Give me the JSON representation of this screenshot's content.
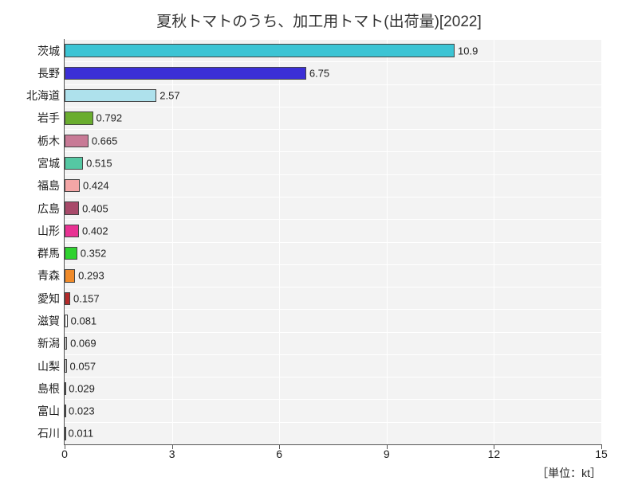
{
  "chart": {
    "type": "bar-horizontal",
    "title": "夏秋トマトのうち、加工用トマト(出荷量)[2022]",
    "unit_label": "［単位：kt］",
    "background_outer": "#ffffff",
    "background_plot": "#f3f3f3",
    "grid_color": "#ffffff",
    "axis_color": "#555555",
    "title_fontsize": 19,
    "label_fontsize": 14,
    "value_fontsize": 13,
    "xlim": [
      0,
      15
    ],
    "xticks": [
      0,
      3,
      6,
      9,
      12,
      15
    ],
    "bar_fill_ratio": 0.6,
    "categories": [
      "茨城",
      "長野",
      "北海道",
      "岩手",
      "栃木",
      "宮城",
      "福島",
      "広島",
      "山形",
      "群馬",
      "青森",
      "愛知",
      "滋賀",
      "新潟",
      "山梨",
      "島根",
      "富山",
      "石川"
    ],
    "values": [
      10.9,
      6.75,
      2.57,
      0.792,
      0.665,
      0.515,
      0.424,
      0.405,
      0.402,
      0.352,
      0.293,
      0.157,
      0.081,
      0.069,
      0.057,
      0.029,
      0.023,
      0.011
    ],
    "value_labels": [
      "10.9",
      "6.75",
      "2.57",
      "0.792",
      "0.665",
      "0.515",
      "0.424",
      "0.405",
      "0.402",
      "0.352",
      "0.293",
      "0.157",
      "0.081",
      "0.069",
      "0.057",
      "0.029",
      "0.023",
      "0.011"
    ],
    "bar_colors": [
      "#3cc4d4",
      "#3b2fd6",
      "#aee1ec",
      "#6aad2f",
      "#c87a96",
      "#55c8a3",
      "#f4a6a6",
      "#a84a6a",
      "#e83293",
      "#2fd22f",
      "#f08b2a",
      "#b52a2a",
      "#ffffff",
      "#ffffff",
      "#ffffff",
      "#ffffff",
      "#ffffff",
      "#ffffff"
    ]
  }
}
